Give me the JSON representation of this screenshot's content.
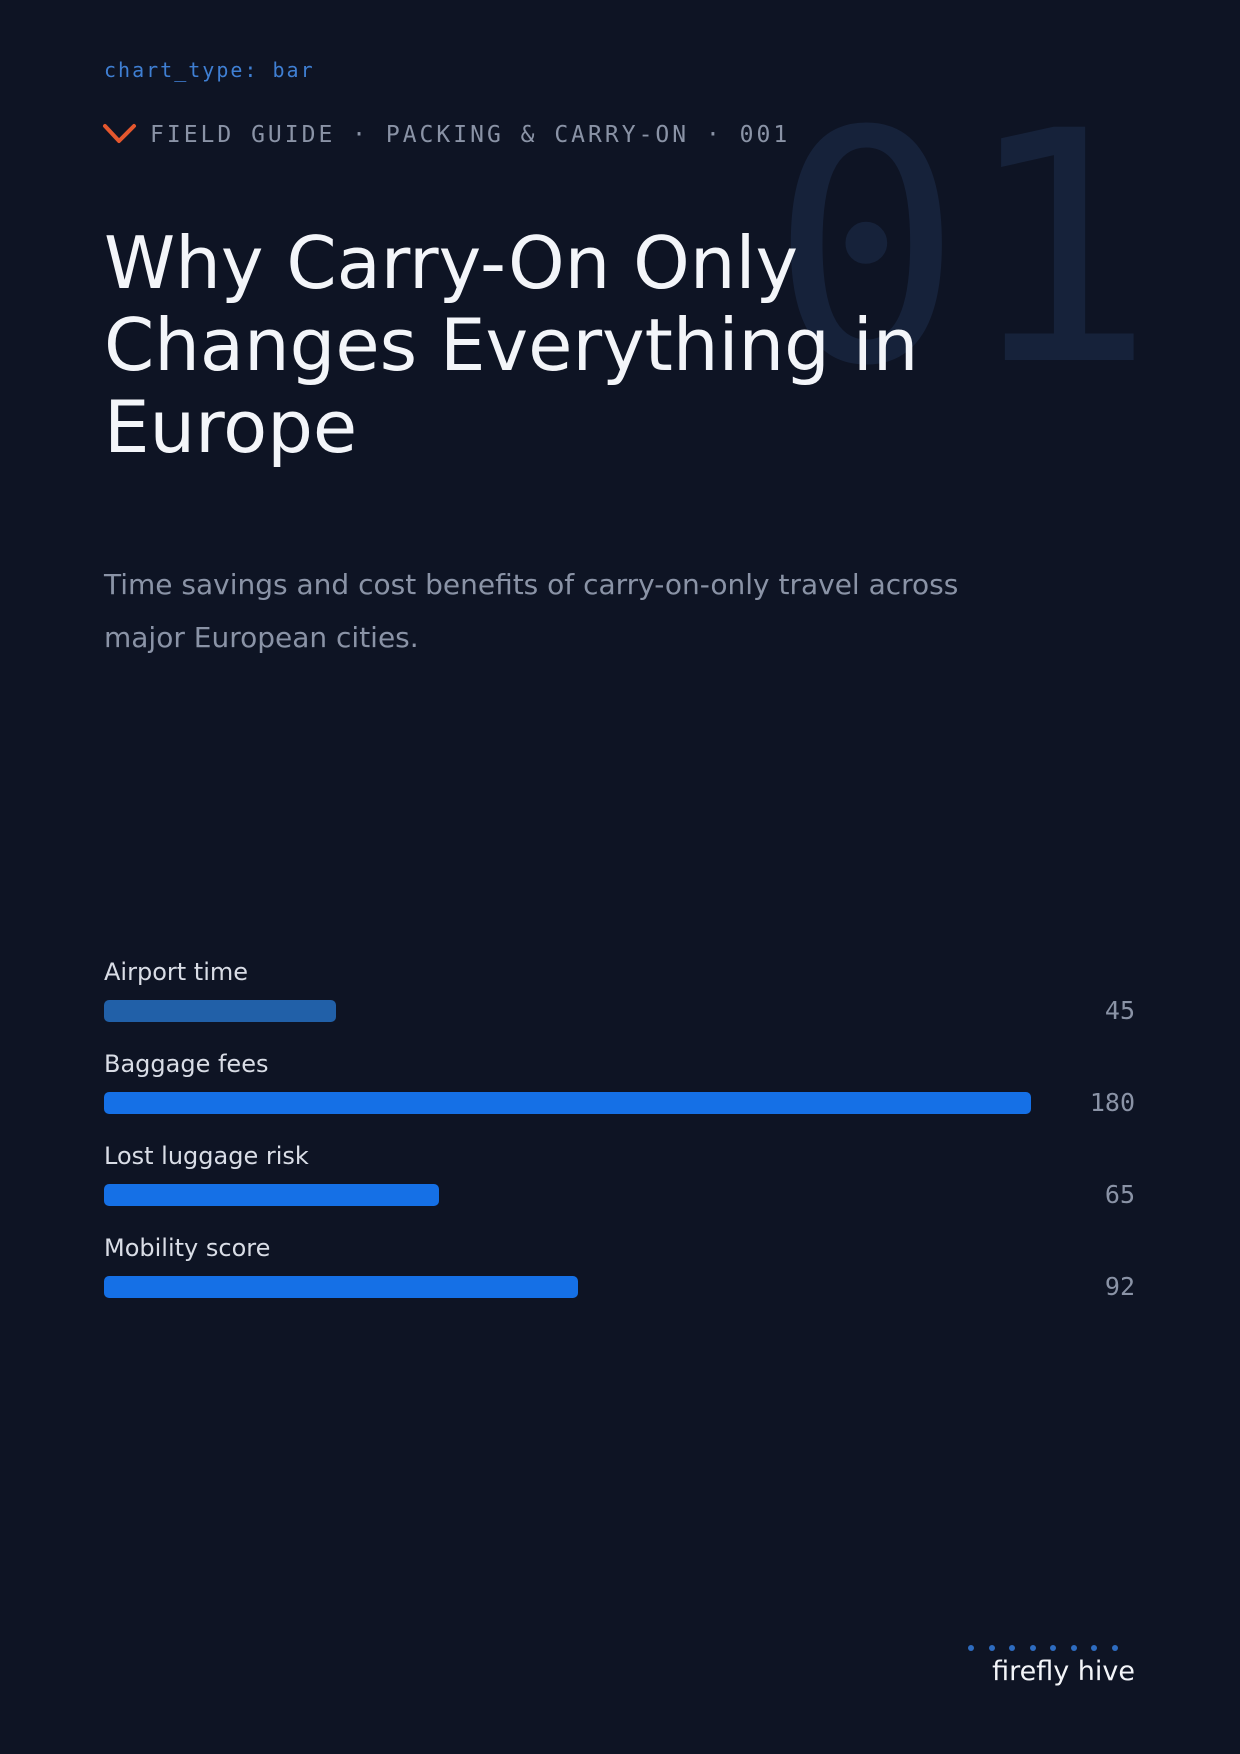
{
  "header": {
    "meta": "chart_type: bar",
    "kicker": "FIELD GUIDE · PACKING & CARRY-ON · 001",
    "number": "01"
  },
  "chart_data": {
    "type": "bar",
    "title": "Why Carry-On Only Changes Everything in Europe",
    "subtitle": "Time savings and cost benefits of carry-on-only travel across major European cities.",
    "categories": [
      "Airport time",
      "Baggage fees",
      "Lost luggage risk",
      "Mobility score"
    ],
    "values": [
      45,
      180,
      65,
      92
    ],
    "colors": [
      "#2160a8",
      "#1570e6",
      "#1570e6",
      "#1570e6"
    ]
  },
  "footer": {
    "brand": "firefly hive"
  }
}
